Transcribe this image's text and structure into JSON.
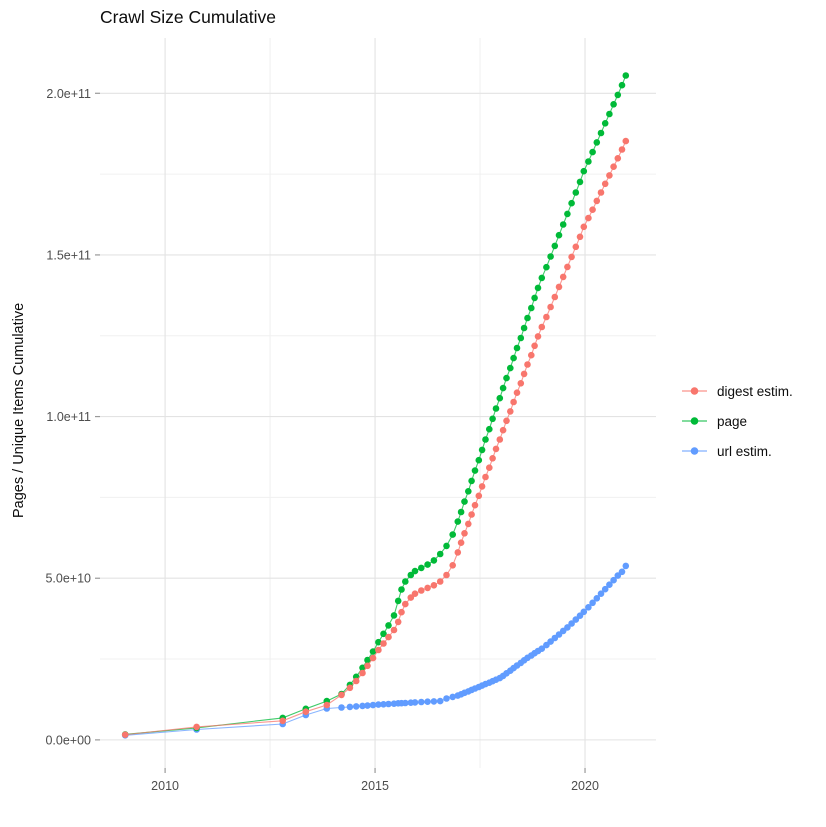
{
  "title": "Crawl Size Cumulative",
  "y_axis_label": "Pages / Unique Items Cumulative",
  "legend": {
    "items": [
      {
        "label": "digest estim.",
        "color": "#F8766D"
      },
      {
        "label": "page",
        "color": "#00BA38"
      },
      {
        "label": "url estim.",
        "color": "#619CFF"
      }
    ]
  },
  "colors": {
    "background": "#ffffff",
    "grid_major": "#e3e3e3",
    "grid_minor": "#f0f0f0",
    "tick_mark": "#999999",
    "axis_text": "#4d4d4d",
    "digest": "#F8766D",
    "page": "#00BA38",
    "url": "#619CFF"
  },
  "chart_data": {
    "type": "scatter",
    "title": "Crawl Size Cumulative",
    "xlabel": "",
    "ylabel": "Pages / Unique Items Cumulative",
    "grid": true,
    "legend_position": "right",
    "x_unit": "year (decimal)",
    "y_unit": "items (billions, 1e9)",
    "xlim": [
      2008.45,
      2021.69
    ],
    "ylim_e9": [
      -8.7,
      217.1
    ],
    "x_major_ticks": [
      2010,
      2015,
      2020
    ],
    "x_tick_labels": [
      "2010",
      "2015",
      "2020"
    ],
    "x_minor_gridlines": [
      2012.5,
      2017.5
    ],
    "y_major_ticks_e9": [
      0,
      50,
      100,
      150,
      200
    ],
    "y_tick_labels": [
      "0.0e+00",
      "5.0e+10",
      "1.0e+11",
      "1.5e+11",
      "2.0e+11"
    ],
    "y_minor_gridlines_e9": [
      25,
      75,
      125,
      175
    ],
    "series": [
      {
        "name": "digest estim.",
        "color": "#F8766D",
        "points_year_e9": [
          [
            2009.05,
            1.6
          ],
          [
            2010.75,
            4.0
          ],
          [
            2012.8,
            5.9
          ],
          [
            2013.35,
            8.7
          ],
          [
            2013.85,
            10.8
          ],
          [
            2014.2,
            13.9
          ],
          [
            2014.4,
            16.1
          ],
          [
            2014.55,
            18.2
          ],
          [
            2014.7,
            20.7
          ],
          [
            2014.82,
            22.9
          ],
          [
            2014.95,
            25.3
          ],
          [
            2015.08,
            27.8
          ],
          [
            2015.2,
            29.8
          ],
          [
            2015.32,
            31.8
          ],
          [
            2015.45,
            34.0
          ],
          [
            2015.55,
            36.5
          ],
          [
            2015.63,
            39.5
          ],
          [
            2015.72,
            42.0
          ],
          [
            2015.85,
            44.0
          ],
          [
            2015.95,
            45.2
          ],
          [
            2016.1,
            46.2
          ],
          [
            2016.25,
            47.0
          ],
          [
            2016.4,
            47.8
          ],
          [
            2016.55,
            49.0
          ],
          [
            2016.7,
            51.0
          ],
          [
            2016.85,
            54.0
          ],
          [
            2016.97,
            58.0
          ],
          [
            2017.05,
            61.0
          ],
          [
            2017.13,
            63.9
          ],
          [
            2017.22,
            66.8
          ],
          [
            2017.3,
            69.7
          ],
          [
            2017.38,
            72.6
          ],
          [
            2017.47,
            75.5
          ],
          [
            2017.55,
            78.4
          ],
          [
            2017.63,
            81.3
          ],
          [
            2017.72,
            84.2
          ],
          [
            2017.8,
            87.1
          ],
          [
            2017.88,
            90.0
          ],
          [
            2017.97,
            92.9
          ],
          [
            2018.05,
            95.8
          ],
          [
            2018.13,
            98.7
          ],
          [
            2018.22,
            101.6
          ],
          [
            2018.3,
            104.5
          ],
          [
            2018.38,
            107.4
          ],
          [
            2018.47,
            110.3
          ],
          [
            2018.55,
            113.2
          ],
          [
            2018.63,
            116.1
          ],
          [
            2018.72,
            119.0
          ],
          [
            2018.8,
            121.9
          ],
          [
            2018.88,
            124.8
          ],
          [
            2018.97,
            127.7
          ],
          [
            2019.08,
            130.8
          ],
          [
            2019.18,
            133.9
          ],
          [
            2019.28,
            137.0
          ],
          [
            2019.38,
            140.1
          ],
          [
            2019.48,
            143.2
          ],
          [
            2019.58,
            146.3
          ],
          [
            2019.68,
            149.4
          ],
          [
            2019.78,
            152.5
          ],
          [
            2019.88,
            155.6
          ],
          [
            2019.97,
            158.7
          ],
          [
            2020.08,
            161.4
          ],
          [
            2020.18,
            164.0
          ],
          [
            2020.28,
            166.7
          ],
          [
            2020.38,
            169.3
          ],
          [
            2020.48,
            172.0
          ],
          [
            2020.58,
            174.6
          ],
          [
            2020.68,
            177.3
          ],
          [
            2020.78,
            179.9
          ],
          [
            2020.88,
            182.6
          ],
          [
            2020.97,
            185.2
          ]
        ]
      },
      {
        "name": "page",
        "color": "#00BA38",
        "points_year_e9": [
          [
            2009.05,
            1.7
          ],
          [
            2010.75,
            3.7
          ],
          [
            2012.8,
            6.8
          ],
          [
            2013.35,
            9.6
          ],
          [
            2013.85,
            12.0
          ],
          [
            2014.2,
            14.2
          ],
          [
            2014.4,
            17.0
          ],
          [
            2014.55,
            19.5
          ],
          [
            2014.7,
            22.3
          ],
          [
            2014.82,
            24.7
          ],
          [
            2014.95,
            27.3
          ],
          [
            2015.08,
            30.2
          ],
          [
            2015.2,
            32.8
          ],
          [
            2015.32,
            35.4
          ],
          [
            2015.45,
            38.5
          ],
          [
            2015.55,
            43.0
          ],
          [
            2015.63,
            46.5
          ],
          [
            2015.72,
            49.0
          ],
          [
            2015.85,
            51.0
          ],
          [
            2015.95,
            52.2
          ],
          [
            2016.1,
            53.2
          ],
          [
            2016.25,
            54.2
          ],
          [
            2016.4,
            55.5
          ],
          [
            2016.55,
            57.5
          ],
          [
            2016.7,
            60.0
          ],
          [
            2016.85,
            63.5
          ],
          [
            2016.97,
            67.5
          ],
          [
            2017.05,
            70.5
          ],
          [
            2017.13,
            73.7
          ],
          [
            2017.22,
            76.9
          ],
          [
            2017.3,
            80.1
          ],
          [
            2017.38,
            83.3
          ],
          [
            2017.47,
            86.5
          ],
          [
            2017.55,
            89.7
          ],
          [
            2017.63,
            92.9
          ],
          [
            2017.72,
            96.1
          ],
          [
            2017.8,
            99.3
          ],
          [
            2017.88,
            102.5
          ],
          [
            2017.97,
            105.7
          ],
          [
            2018.05,
            108.8
          ],
          [
            2018.13,
            111.9
          ],
          [
            2018.22,
            115.0
          ],
          [
            2018.3,
            118.1
          ],
          [
            2018.38,
            121.2
          ],
          [
            2018.47,
            124.3
          ],
          [
            2018.55,
            127.4
          ],
          [
            2018.63,
            130.5
          ],
          [
            2018.72,
            133.6
          ],
          [
            2018.8,
            136.7
          ],
          [
            2018.88,
            139.8
          ],
          [
            2018.97,
            142.9
          ],
          [
            2019.08,
            146.2
          ],
          [
            2019.18,
            149.5
          ],
          [
            2019.28,
            152.8
          ],
          [
            2019.38,
            156.1
          ],
          [
            2019.48,
            159.4
          ],
          [
            2019.58,
            162.7
          ],
          [
            2019.68,
            166.0
          ],
          [
            2019.78,
            169.3
          ],
          [
            2019.88,
            172.6
          ],
          [
            2019.97,
            175.9
          ],
          [
            2020.08,
            178.9
          ],
          [
            2020.18,
            181.8
          ],
          [
            2020.28,
            184.8
          ],
          [
            2020.38,
            187.7
          ],
          [
            2020.48,
            190.7
          ],
          [
            2020.58,
            193.6
          ],
          [
            2020.68,
            196.6
          ],
          [
            2020.78,
            199.5
          ],
          [
            2020.88,
            202.5
          ],
          [
            2020.97,
            205.5
          ]
        ]
      },
      {
        "name": "url estim.",
        "color": "#619CFF",
        "points_year_e9": [
          [
            2009.05,
            1.4
          ],
          [
            2010.75,
            3.2
          ],
          [
            2012.8,
            4.9
          ],
          [
            2013.35,
            7.7
          ],
          [
            2013.85,
            9.7
          ],
          [
            2014.2,
            10.0
          ],
          [
            2014.4,
            10.2
          ],
          [
            2014.55,
            10.35
          ],
          [
            2014.7,
            10.5
          ],
          [
            2014.82,
            10.6
          ],
          [
            2014.95,
            10.75
          ],
          [
            2015.08,
            10.9
          ],
          [
            2015.2,
            11.0
          ],
          [
            2015.32,
            11.1
          ],
          [
            2015.45,
            11.2
          ],
          [
            2015.55,
            11.3
          ],
          [
            2015.63,
            11.35
          ],
          [
            2015.72,
            11.4
          ],
          [
            2015.85,
            11.5
          ],
          [
            2015.95,
            11.6
          ],
          [
            2016.1,
            11.7
          ],
          [
            2016.25,
            11.8
          ],
          [
            2016.4,
            11.9
          ],
          [
            2016.55,
            12.0
          ],
          [
            2016.7,
            12.8
          ],
          [
            2016.85,
            13.3
          ],
          [
            2016.97,
            13.7
          ],
          [
            2017.05,
            14.1
          ],
          [
            2017.13,
            14.55
          ],
          [
            2017.22,
            15.0
          ],
          [
            2017.3,
            15.45
          ],
          [
            2017.38,
            15.9
          ],
          [
            2017.47,
            16.35
          ],
          [
            2017.55,
            16.8
          ],
          [
            2017.63,
            17.25
          ],
          [
            2017.72,
            17.7
          ],
          [
            2017.8,
            18.15
          ],
          [
            2017.88,
            18.6
          ],
          [
            2017.97,
            19.1
          ],
          [
            2018.05,
            19.8
          ],
          [
            2018.13,
            20.6
          ],
          [
            2018.22,
            21.4
          ],
          [
            2018.3,
            22.2
          ],
          [
            2018.38,
            23.0
          ],
          [
            2018.47,
            23.8
          ],
          [
            2018.55,
            24.6
          ],
          [
            2018.63,
            25.4
          ],
          [
            2018.72,
            26.1
          ],
          [
            2018.8,
            26.8
          ],
          [
            2018.88,
            27.5
          ],
          [
            2018.97,
            28.2
          ],
          [
            2019.08,
            29.3
          ],
          [
            2019.18,
            30.4
          ],
          [
            2019.28,
            31.5
          ],
          [
            2019.38,
            32.6
          ],
          [
            2019.48,
            33.7
          ],
          [
            2019.58,
            34.8
          ],
          [
            2019.68,
            36.0
          ],
          [
            2019.78,
            37.2
          ],
          [
            2019.88,
            38.4
          ],
          [
            2019.97,
            39.6
          ],
          [
            2020.08,
            41.0
          ],
          [
            2020.18,
            42.4
          ],
          [
            2020.28,
            43.8
          ],
          [
            2020.38,
            45.2
          ],
          [
            2020.48,
            46.6
          ],
          [
            2020.58,
            48.0
          ],
          [
            2020.68,
            49.4
          ],
          [
            2020.78,
            50.8
          ],
          [
            2020.88,
            52.0
          ],
          [
            2020.97,
            53.8
          ]
        ]
      }
    ]
  }
}
